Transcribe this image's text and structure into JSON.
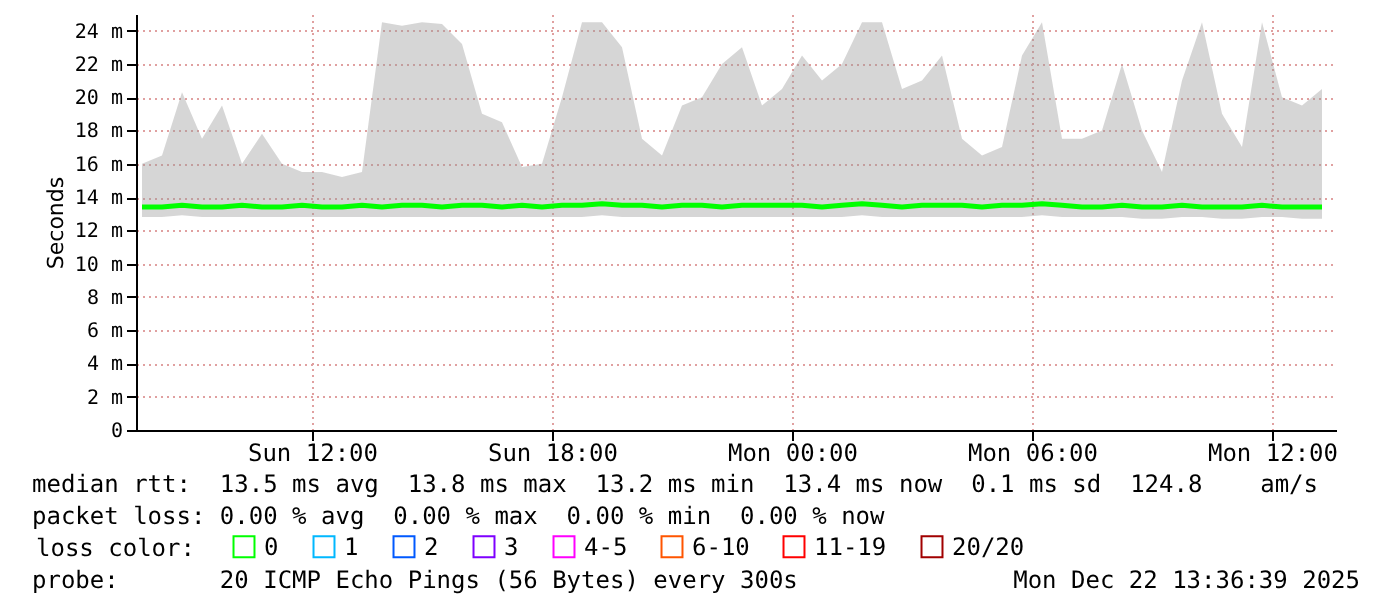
{
  "chart_data": {
    "type": "line",
    "ylabel": "Seconds",
    "x": [
      "2025-12-21T07:45",
      "2025-12-21T08:15",
      "2025-12-21T08:45",
      "2025-12-21T09:15",
      "2025-12-21T09:45",
      "2025-12-21T10:15",
      "2025-12-21T10:45",
      "2025-12-21T11:15",
      "2025-12-21T11:45",
      "2025-12-21T12:15",
      "2025-12-21T12:45",
      "2025-12-21T13:15",
      "2025-12-21T13:45",
      "2025-12-21T14:15",
      "2025-12-21T14:45",
      "2025-12-21T15:15",
      "2025-12-21T15:45",
      "2025-12-21T16:15",
      "2025-12-21T16:45",
      "2025-12-21T17:15",
      "2025-12-21T17:45",
      "2025-12-21T18:15",
      "2025-12-21T18:45",
      "2025-12-21T19:15",
      "2025-12-21T19:45",
      "2025-12-21T20:15",
      "2025-12-21T20:45",
      "2025-12-21T21:15",
      "2025-12-21T21:45",
      "2025-12-21T22:15",
      "2025-12-21T22:45",
      "2025-12-21T23:15",
      "2025-12-21T23:45",
      "2025-12-22T00:15",
      "2025-12-22T00:45",
      "2025-12-22T01:15",
      "2025-12-22T01:45",
      "2025-12-22T02:15",
      "2025-12-22T02:45",
      "2025-12-22T03:15",
      "2025-12-22T03:45",
      "2025-12-22T04:15",
      "2025-12-22T04:45",
      "2025-12-22T05:15",
      "2025-12-22T05:45",
      "2025-12-22T06:15",
      "2025-12-22T06:45",
      "2025-12-22T07:15",
      "2025-12-22T07:45",
      "2025-12-22T08:15",
      "2025-12-22T08:45",
      "2025-12-22T09:15",
      "2025-12-22T09:45",
      "2025-12-22T10:15",
      "2025-12-22T10:45",
      "2025-12-22T11:15",
      "2025-12-22T11:45",
      "2025-12-22T12:15",
      "2025-12-22T12:45",
      "2025-12-22T13:15"
    ],
    "series": [
      {
        "name": "0",
        "color": "#00ff00",
        "values": [
          13.4,
          13.4,
          13.5,
          13.4,
          13.4,
          13.5,
          13.4,
          13.4,
          13.5,
          13.4,
          13.4,
          13.5,
          13.4,
          13.5,
          13.5,
          13.4,
          13.5,
          13.5,
          13.4,
          13.5,
          13.4,
          13.5,
          13.5,
          13.6,
          13.5,
          13.5,
          13.4,
          13.5,
          13.5,
          13.4,
          13.5,
          13.5,
          13.5,
          13.5,
          13.4,
          13.5,
          13.6,
          13.5,
          13.4,
          13.5,
          13.5,
          13.5,
          13.4,
          13.5,
          13.5,
          13.6,
          13.5,
          13.4,
          13.4,
          13.5,
          13.4,
          13.4,
          13.5,
          13.4,
          13.4,
          13.4,
          13.5,
          13.4,
          13.4,
          13.4
        ],
        "lower": [
          12.8,
          12.8,
          12.9,
          12.8,
          12.8,
          12.8,
          12.8,
          12.8,
          12.8,
          12.8,
          12.8,
          12.8,
          12.8,
          12.8,
          12.8,
          12.8,
          12.8,
          12.8,
          12.8,
          12.8,
          12.8,
          12.8,
          12.8,
          12.9,
          12.8,
          12.8,
          12.8,
          12.8,
          12.8,
          12.8,
          12.8,
          12.8,
          12.8,
          12.8,
          12.8,
          12.8,
          12.9,
          12.8,
          12.8,
          12.8,
          12.8,
          12.8,
          12.8,
          12.8,
          12.8,
          12.9,
          12.8,
          12.8,
          12.8,
          12.8,
          12.7,
          12.7,
          12.8,
          12.8,
          12.7,
          12.7,
          12.8,
          12.8,
          12.7,
          12.7
        ],
        "upper": [
          16,
          16.5,
          20.3,
          17.5,
          19.5,
          16,
          17.8,
          16,
          15.5,
          15.5,
          15.2,
          15.5,
          24.5,
          24.3,
          24.5,
          24.4,
          23.2,
          19,
          18.5,
          15.8,
          16,
          20,
          24.5,
          24.5,
          23,
          17.5,
          16.5,
          19.5,
          20,
          22,
          23,
          19.5,
          20.5,
          22.5,
          21,
          22,
          24.5,
          24.5,
          20.5,
          21,
          22.5,
          17.5,
          16.5,
          17,
          22.5,
          24.5,
          17.5,
          17.5,
          18,
          22,
          18,
          15.5,
          21,
          24.5,
          19,
          17,
          24.5,
          20,
          19.5,
          20.5
        ]
      },
      {
        "name": "1",
        "color": "#00b8ff",
        "values": [
          null,
          null,
          null,
          null,
          null,
          null,
          null,
          null,
          null,
          null,
          null,
          null,
          null,
          null,
          null,
          null,
          null,
          null,
          null,
          null,
          null,
          null,
          null,
          null,
          null,
          null,
          null,
          null,
          null,
          null,
          null,
          null,
          null,
          null,
          null,
          null,
          null,
          null,
          null,
          null,
          null,
          null,
          null,
          null,
          null,
          null,
          null,
          null,
          null,
          null,
          null,
          null,
          null,
          null,
          null,
          null,
          null,
          null,
          null,
          null
        ]
      },
      {
        "name": "2",
        "color": "#0059ff",
        "values": [
          null,
          null,
          null,
          null,
          null,
          null,
          null,
          null,
          null,
          null,
          null,
          null,
          null,
          null,
          null,
          null,
          null,
          null,
          null,
          null,
          null,
          null,
          null,
          null,
          null,
          null,
          null,
          null,
          null,
          null,
          null,
          null,
          null,
          null,
          null,
          null,
          null,
          null,
          null,
          null,
          null,
          null,
          null,
          null,
          null,
          null,
          null,
          null,
          null,
          null,
          null,
          null,
          null,
          null,
          null,
          null,
          null,
          null,
          null,
          null
        ]
      },
      {
        "name": "3",
        "color": "#7e00ff",
        "values": [
          null,
          null,
          null,
          null,
          null,
          null,
          null,
          null,
          null,
          null,
          null,
          null,
          null,
          null,
          null,
          null,
          null,
          null,
          null,
          null,
          null,
          null,
          null,
          null,
          null,
          null,
          null,
          null,
          null,
          null,
          null,
          null,
          null,
          null,
          null,
          null,
          null,
          null,
          null,
          null,
          null,
          null,
          null,
          null,
          null,
          null,
          null,
          null,
          null,
          null,
          null,
          null,
          null,
          null,
          null,
          null,
          null,
          null,
          null,
          null
        ]
      },
      {
        "name": "4-5",
        "color": "#ff00ff",
        "values": [
          null,
          null,
          null,
          null,
          null,
          null,
          null,
          null,
          null,
          null,
          null,
          null,
          null,
          null,
          null,
          null,
          null,
          null,
          null,
          null,
          null,
          null,
          null,
          null,
          null,
          null,
          null,
          null,
          null,
          null,
          null,
          null,
          null,
          null,
          null,
          null,
          null,
          null,
          null,
          null,
          null,
          null,
          null,
          null,
          null,
          null,
          null,
          null,
          null,
          null,
          null,
          null,
          null,
          null,
          null,
          null,
          null,
          null,
          null,
          null
        ]
      },
      {
        "name": "6-10",
        "color": "#ff5500",
        "values": [
          null,
          null,
          null,
          null,
          null,
          null,
          null,
          null,
          null,
          null,
          null,
          null,
          null,
          null,
          null,
          null,
          null,
          null,
          null,
          null,
          null,
          null,
          null,
          null,
          null,
          null,
          null,
          null,
          null,
          null,
          null,
          null,
          null,
          null,
          null,
          null,
          null,
          null,
          null,
          null,
          null,
          null,
          null,
          null,
          null,
          null,
          null,
          null,
          null,
          null,
          null,
          null,
          null,
          null,
          null,
          null,
          null,
          null,
          null,
          null
        ]
      },
      {
        "name": "11-19",
        "color": "#ff0000",
        "values": [
          null,
          null,
          null,
          null,
          null,
          null,
          null,
          null,
          null,
          null,
          null,
          null,
          null,
          null,
          null,
          null,
          null,
          null,
          null,
          null,
          null,
          null,
          null,
          null,
          null,
          null,
          null,
          null,
          null,
          null,
          null,
          null,
          null,
          null,
          null,
          null,
          null,
          null,
          null,
          null,
          null,
          null,
          null,
          null,
          null,
          null,
          null,
          null,
          null,
          null,
          null,
          null,
          null,
          null,
          null,
          null,
          null,
          null,
          null,
          null
        ]
      },
      {
        "name": "20/20",
        "color": "#a10000",
        "values": [
          null,
          null,
          null,
          null,
          null,
          null,
          null,
          null,
          null,
          null,
          null,
          null,
          null,
          null,
          null,
          null,
          null,
          null,
          null,
          null,
          null,
          null,
          null,
          null,
          null,
          null,
          null,
          null,
          null,
          null,
          null,
          null,
          null,
          null,
          null,
          null,
          null,
          null,
          null,
          null,
          null,
          null,
          null,
          null,
          null,
          null,
          null,
          null,
          null,
          null,
          null,
          null,
          null,
          null,
          null,
          null,
          null,
          null,
          null,
          null
        ]
      }
    ],
    "xlim": [
      "2025-12-21T07:36",
      "2025-12-22T13:36"
    ],
    "xticks": [
      {
        "value": "2025-12-21T12:00",
        "label": "Sun 12:00"
      },
      {
        "value": "2025-12-21T18:00",
        "label": "Sun 18:00"
      },
      {
        "value": "2025-12-22T00:00",
        "label": "Mon 00:00"
      },
      {
        "value": "2025-12-22T06:00",
        "label": "Mon 06:00"
      },
      {
        "value": "2025-12-22T12:00",
        "label": "Mon 12:00"
      }
    ],
    "ylim": [
      0,
      25
    ],
    "yticks": [
      0,
      {
        "value": 2,
        "label": "2 m"
      },
      {
        "value": 4,
        "label": "4 m"
      },
      {
        "value": 6,
        "label": "6 m"
      },
      {
        "value": 8,
        "label": "8 m"
      },
      {
        "value": 10,
        "label": "10 m"
      },
      {
        "value": 12,
        "label": "12 m"
      },
      {
        "value": 14,
        "label": "14 m"
      },
      {
        "value": 16,
        "label": "16 m"
      },
      {
        "value": 18,
        "label": "18 m"
      },
      {
        "value": 20,
        "label": "20 m"
      },
      {
        "value": 22,
        "label": "22 m"
      },
      {
        "value": 24,
        "label": "24 m"
      }
    ],
    "grid": true,
    "legend": "bottom",
    "legend_title": "loss color:",
    "marker": "none",
    "line_style": "solid",
    "annotations": [
      "median rtt:  13.5 ms avg  13.8 ms max  13.2 ms min  13.4 ms now  0.1 ms sd  124.8    am/s",
      "packet loss: 0.00 % avg  0.00 % max  0.00 % min  0.00 % now",
      "probe:       20 ICMP Echo Pings (56 Bytes) every 300s",
      "Mon Dec 22 13:36:39 2025"
    ]
  }
}
